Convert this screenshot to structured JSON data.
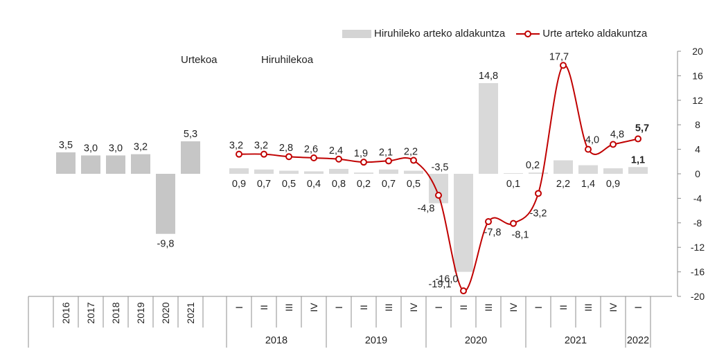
{
  "chart_data": {
    "type": "bar",
    "annual_label": "Urtekoa",
    "quarterly_label": "Hiruhilekoa",
    "legend": {
      "bar_label": "Hiruhileko arteko aldakuntza",
      "line_label": "Urte arteko aldakuntza"
    },
    "annual": {
      "categories": [
        "2016",
        "2017",
        "2018",
        "2019",
        "2020",
        "2021"
      ],
      "values": [
        3.5,
        3.0,
        3.0,
        3.2,
        -9.8,
        5.3
      ],
      "value_labels": [
        "3,5",
        "3,0",
        "3,0",
        "3,2",
        "-9,8",
        "5,3"
      ]
    },
    "quarterly": {
      "quarters": [
        "I",
        "II",
        "III",
        "IV",
        "I",
        "II",
        "III",
        "IV",
        "I",
        "II",
        "III",
        "IV",
        "I",
        "II",
        "III",
        "IV",
        "I"
      ],
      "years": [
        {
          "label": "2018",
          "count": 4
        },
        {
          "label": "2019",
          "count": 4
        },
        {
          "label": "2020",
          "count": 4
        },
        {
          "label": "2021",
          "count": 4
        },
        {
          "label": "2022",
          "count": 1
        }
      ],
      "series": [
        {
          "name": "Hiruhileko arteko aldakuntza",
          "type": "bar",
          "values": [
            0.9,
            0.7,
            0.5,
            0.4,
            0.8,
            0.2,
            0.7,
            0.5,
            -4.8,
            -16.0,
            14.8,
            0.1,
            0.2,
            2.2,
            1.4,
            0.9,
            1.1
          ],
          "value_labels": [
            "0,9",
            "0,7",
            "0,5",
            "0,4",
            "0,8",
            "0,2",
            "0,7",
            "0,5",
            "-4,8",
            "-16,0",
            "14,8",
            "0,1",
            "0,2",
            "2,2",
            "1,4",
            "0,9",
            "1,1"
          ]
        },
        {
          "name": "Urte arteko aldakuntza",
          "type": "line",
          "values": [
            3.2,
            3.2,
            2.8,
            2.6,
            2.4,
            1.9,
            2.1,
            2.2,
            -3.5,
            -19.1,
            -7.8,
            -8.1,
            -3.2,
            17.7,
            4.0,
            4.8,
            5.7
          ],
          "value_labels": [
            "3,2",
            "3,2",
            "2,8",
            "2,6",
            "2,4",
            "1,9",
            "2,1",
            "2,2",
            "-3,5",
            "-19,1",
            "-7,8",
            "-8,1",
            "-3,2",
            "17,7",
            "4,0",
            "4,8",
            "5,7"
          ]
        }
      ]
    },
    "y_axis": {
      "position": "right",
      "ylim": [
        -20,
        20
      ],
      "ticks": [
        20,
        16,
        12,
        8,
        4,
        0,
        -4,
        -8,
        -12,
        -16,
        -20
      ],
      "tick_labels": [
        "20",
        "16",
        "12",
        "8",
        "4",
        "0",
        "-4",
        "-8",
        "-12",
        "-16",
        "-20"
      ]
    },
    "colors": {
      "annual_bar": "#c6c6c6",
      "quarterly_bar": "#d9d9d9",
      "line": "#c00000",
      "text": "#222222",
      "axis": "#8c8c8c"
    }
  }
}
